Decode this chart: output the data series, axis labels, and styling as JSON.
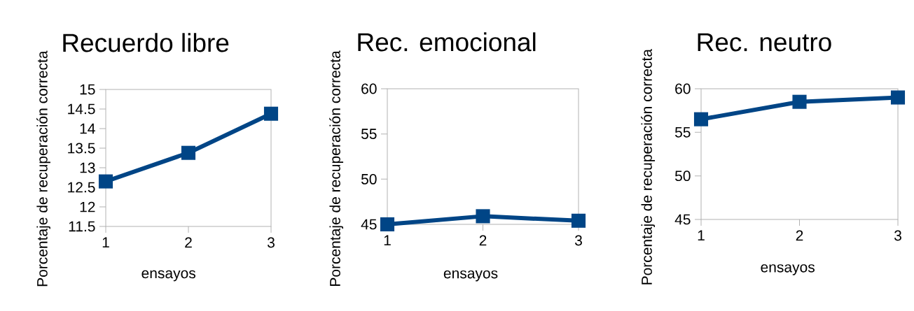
{
  "chart_data": [
    {
      "type": "line",
      "title": "Recuerdo libre",
      "xlabel": "ensayos",
      "ylabel": "Porcentaje de recuperación correcta",
      "categories": [
        "1",
        "2",
        "3"
      ],
      "ylim": [
        11.5,
        15
      ],
      "yticks": [
        11.5,
        12,
        12.5,
        13,
        13.5,
        14,
        14.5,
        15
      ],
      "marker": "square",
      "grid": false,
      "series": [
        {
          "color": "#004586",
          "values": [
            12.65,
            13.38,
            14.38
          ]
        }
      ]
    },
    {
      "type": "line",
      "title": "Rec. emocional",
      "xlabel": "ensayos",
      "ylabel": "Porcentaje de recuperación correcta",
      "categories": [
        "1",
        "2",
        "3"
      ],
      "ylim": [
        45,
        60
      ],
      "yticks": [
        45,
        50,
        55,
        60
      ],
      "marker": "square",
      "grid": false,
      "series": [
        {
          "color": "#004586",
          "values": [
            45.0,
            45.9,
            45.4
          ]
        }
      ]
    },
    {
      "type": "line",
      "title": "Rec. neutro",
      "xlabel": "ensayos",
      "ylabel": "Porcentaje de recuperación correcta",
      "categories": [
        "1",
        "2",
        "3"
      ],
      "ylim": [
        45,
        60
      ],
      "yticks": [
        45,
        50,
        55,
        60
      ],
      "marker": "square",
      "grid": false,
      "series": [
        {
          "color": "#004586",
          "values": [
            56.5,
            58.5,
            59.0
          ]
        }
      ]
    }
  ]
}
